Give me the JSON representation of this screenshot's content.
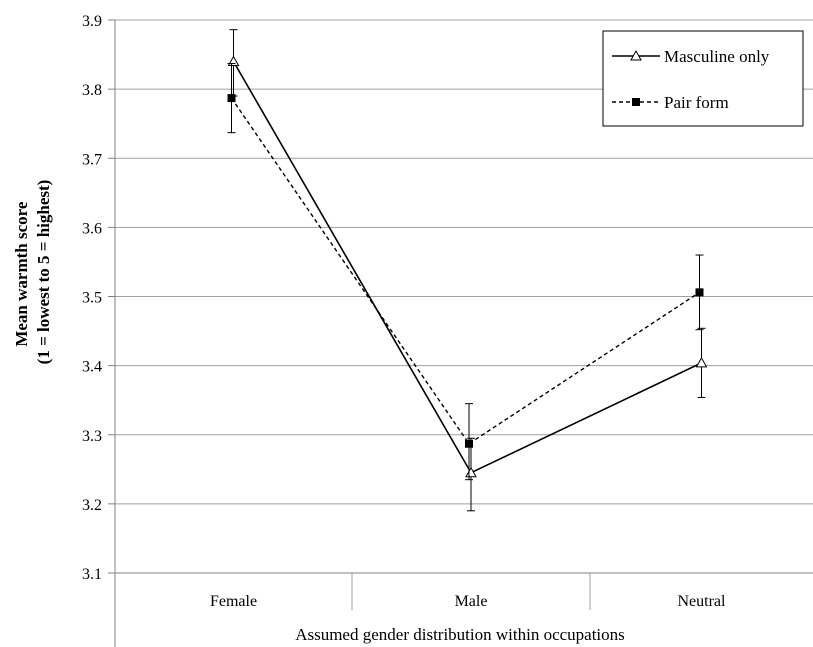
{
  "chart_data": {
    "type": "line",
    "title": "",
    "xlabel": "Assumed gender distribution within occupations",
    "ylabel_lines": [
      "Mean warmth score",
      "(1 = lowest to 5 = highest)"
    ],
    "ylim": [
      3.1,
      3.9
    ],
    "yticks": [
      "3.1",
      "3.2",
      "3.3",
      "3.4",
      "3.5",
      "3.6",
      "3.7",
      "3.8",
      "3.9"
    ],
    "grid": true,
    "legend_position": "top-right",
    "categories": [
      "Female",
      "Male",
      "Neutral"
    ],
    "series": [
      {
        "name": "Masculine only",
        "marker": "triangle-open",
        "line_style": "solid",
        "values": [
          3.84,
          3.245,
          3.404
        ],
        "error_low": [
          3.79,
          3.19,
          3.354
        ],
        "error_high": [
          3.886,
          3.295,
          3.454
        ]
      },
      {
        "name": "Pair form",
        "marker": "square-filled",
        "line_style": "dashed",
        "values": [
          3.787,
          3.287,
          3.506
        ],
        "error_low": [
          3.737,
          3.235,
          3.452
        ],
        "error_high": [
          3.837,
          3.345,
          3.56
        ]
      }
    ],
    "colors": {
      "line": "#000000",
      "grid": "#a0a0a0",
      "axis": "#808080"
    }
  }
}
